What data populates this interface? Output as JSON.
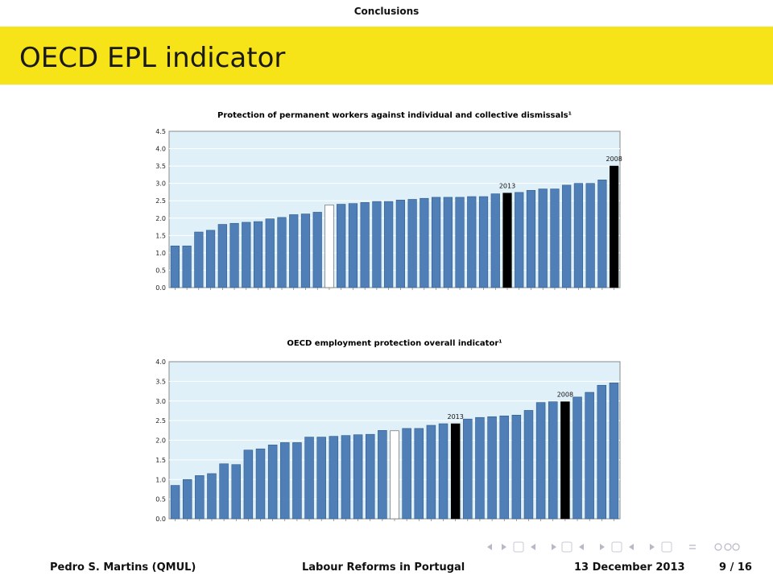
{
  "header": {
    "section": "Conclusions"
  },
  "frame": {
    "title": "OECD EPL indicator"
  },
  "footer": {
    "author": "Pedro S. Martins  (QMUL)",
    "talk_title": "Labour Reforms in Portugal",
    "date": "13 December 2013",
    "page": "9 / 16"
  },
  "colors": {
    "title_band": "#f6e318",
    "plot_bg": "#dff0f8",
    "bar": "#4f7fb6",
    "highlight": "#000000",
    "oecd": "#ffffff"
  },
  "nav_icons": [
    "slide-prev-icon",
    "slide-next-icon",
    "frame-prev-icon",
    "frame-next-icon",
    "subsection-prev-icon",
    "subsection-next-icon",
    "section-prev-icon",
    "section-next-icon",
    "align-icon",
    "search-icon"
  ],
  "chart_data": [
    {
      "type": "bar",
      "title": "Protection of permanent workers against individual and collective dismissals¹",
      "ylim": [
        0,
        4.5
      ],
      "yticks": [
        "0.0",
        "0.5",
        "1.0",
        "1.5",
        "2.0",
        "2.5",
        "3.0",
        "3.5",
        "4.0",
        "4.5"
      ],
      "values": [
        1.2,
        1.2,
        1.6,
        1.65,
        1.82,
        1.85,
        1.88,
        1.9,
        1.98,
        2.02,
        2.1,
        2.12,
        2.17,
        2.38,
        2.4,
        2.42,
        2.45,
        2.48,
        2.48,
        2.52,
        2.54,
        2.57,
        2.6,
        2.6,
        2.6,
        2.62,
        2.62,
        2.7,
        2.72,
        2.74,
        2.8,
        2.84,
        2.84,
        2.95,
        3.0,
        3.0,
        3.1,
        3.5
      ],
      "highlights": [
        {
          "index": 28,
          "label": "2013"
        },
        {
          "index": 37,
          "label": "2008"
        }
      ],
      "oecd_index": 13,
      "grid": true
    },
    {
      "type": "bar",
      "title": "OECD employment protection overall indicator¹",
      "ylim": [
        0,
        4.0
      ],
      "yticks": [
        "0.0",
        "0.5",
        "1.0",
        "1.5",
        "2.0",
        "2.5",
        "3.0",
        "3.5",
        "4.0"
      ],
      "values": [
        0.85,
        1.0,
        1.1,
        1.15,
        1.4,
        1.38,
        1.75,
        1.78,
        1.88,
        1.94,
        1.94,
        2.08,
        2.08,
        2.1,
        2.12,
        2.14,
        2.15,
        2.25,
        2.24,
        2.3,
        2.3,
        2.38,
        2.42,
        2.42,
        2.54,
        2.58,
        2.6,
        2.62,
        2.64,
        2.76,
        2.96,
        2.98,
        2.98,
        3.1,
        3.22,
        3.4,
        3.46
      ],
      "highlights": [
        {
          "index": 23,
          "label": "2013"
        },
        {
          "index": 32,
          "label": "2008"
        }
      ],
      "oecd_index": 18,
      "grid": true
    }
  ]
}
